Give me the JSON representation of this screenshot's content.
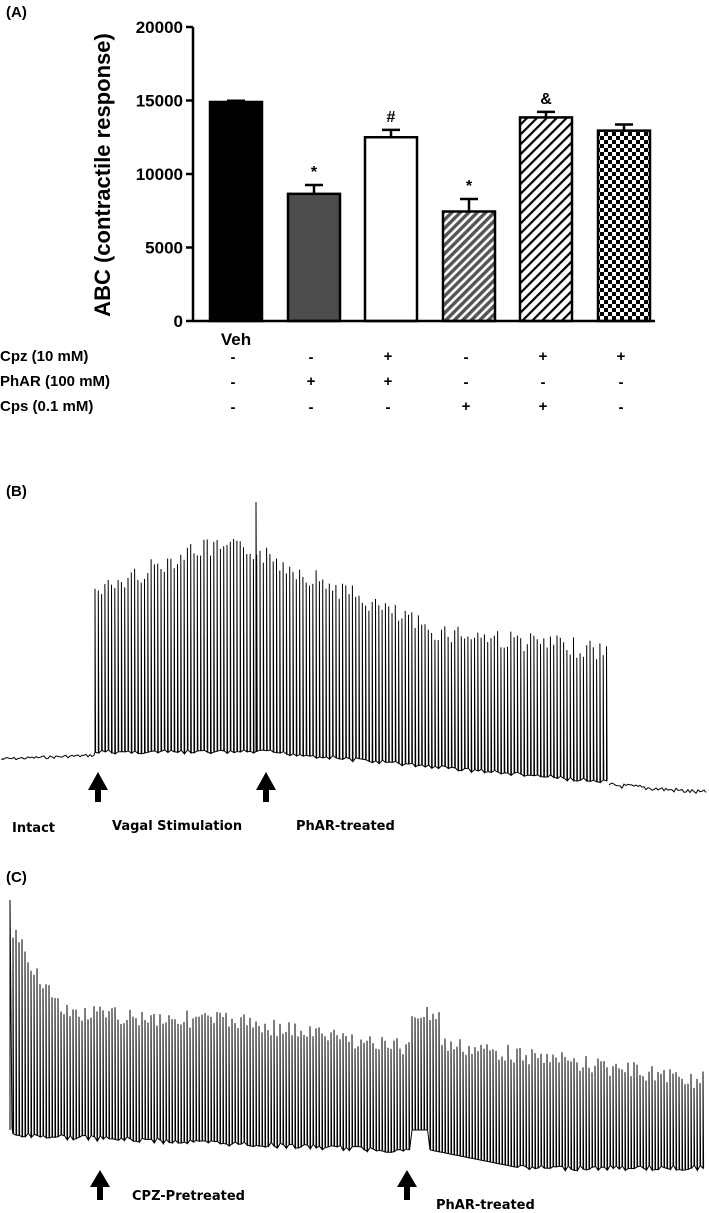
{
  "chart_data": [
    {
      "type": "bar",
      "panel": "(A)",
      "ylabel": "ABC (contractile response)",
      "ylim": [
        0,
        20000
      ],
      "yticks": [
        0,
        5000,
        10000,
        15000,
        20000
      ],
      "category_labels": [
        "Veh",
        "",
        "",
        "",
        "",
        ""
      ],
      "values": [
        14900,
        8650,
        12500,
        7450,
        13850,
        12950
      ],
      "errors": [
        80,
        600,
        500,
        850,
        380,
        420
      ],
      "significance": [
        "",
        "*",
        "#",
        "*",
        "&",
        ""
      ],
      "fills": [
        "solid-black",
        "solid-darkgray",
        "white",
        "diagonal-hatch-dense",
        "diagonal-hatch",
        "checkerboard"
      ],
      "conditions": [
        {
          "label": "Cpz (10 mM)",
          "marks": [
            "-",
            "-",
            "+",
            "-",
            "+",
            "+"
          ]
        },
        {
          "label": "PhAR (100 mM)",
          "marks": [
            "-",
            "+",
            "+",
            "-",
            "-",
            "-"
          ]
        },
        {
          "label": "Cps (0.1 mM)",
          "marks": [
            "-",
            "-",
            "-",
            "+",
            "+",
            "-"
          ]
        }
      ],
      "colors": {
        "bar1": "#000000",
        "bar2": "#4d4d4d",
        "bar3": "#ffffff"
      }
    },
    {
      "type": "line",
      "panel": "(B)",
      "annotations": [
        "Intact",
        "Vagal Stimulation",
        "PhAR-treated"
      ]
    },
    {
      "type": "line",
      "panel": "(C)",
      "annotations": [
        "CPZ-Pretreated",
        "PhAR-treated"
      ]
    }
  ]
}
